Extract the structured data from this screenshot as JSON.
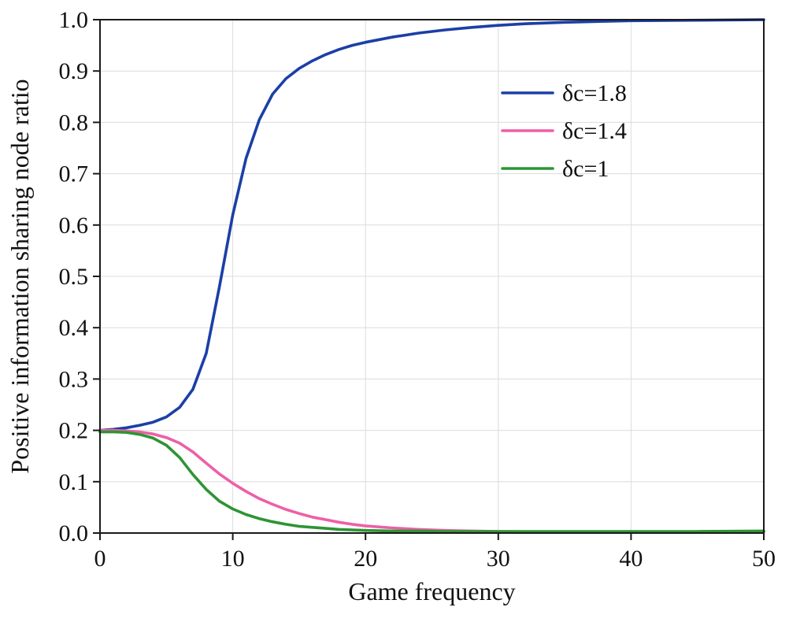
{
  "chart_data": {
    "type": "line",
    "title": "",
    "xlabel": "Game frequency",
    "ylabel": "Positive information sharing node ratio",
    "xlim": [
      0,
      50
    ],
    "ylim": [
      0,
      1
    ],
    "grid": true,
    "legend_position": "upper right",
    "axis_color": "#1a1a1a",
    "grid_color": "#dcdcdc",
    "xtick_values": [
      0,
      10,
      20,
      30,
      40,
      50
    ],
    "xtick_labels": [
      "0",
      "10",
      "20",
      "30",
      "40",
      "50"
    ],
    "ytick_values": [
      0,
      0.1,
      0.2,
      0.3,
      0.4,
      0.5,
      0.6,
      0.7,
      0.8,
      0.9,
      1.0
    ],
    "ytick_labels": [
      "0.0",
      "0.1",
      "0.2",
      "0.3",
      "0.4",
      "0.5",
      "0.6",
      "0.7",
      "0.8",
      "0.9",
      "1.0"
    ],
    "series": [
      {
        "name": "δc=1.8",
        "color": "#1b3fa6",
        "x": [
          0,
          1,
          2,
          3,
          4,
          5,
          6,
          7,
          8,
          9,
          10,
          11,
          12,
          13,
          14,
          15,
          16,
          17,
          18,
          19,
          20,
          22,
          24,
          26,
          28,
          30,
          32,
          35,
          40,
          45,
          50
        ],
        "y": [
          0.2,
          0.202,
          0.205,
          0.21,
          0.216,
          0.226,
          0.245,
          0.28,
          0.35,
          0.48,
          0.62,
          0.73,
          0.805,
          0.855,
          0.885,
          0.905,
          0.92,
          0.932,
          0.942,
          0.95,
          0.956,
          0.966,
          0.974,
          0.98,
          0.985,
          0.989,
          0.992,
          0.995,
          0.998,
          0.999,
          1.0
        ]
      },
      {
        "name": "δc=1.4",
        "color": "#ee5fa7",
        "x": [
          0,
          1,
          2,
          3,
          4,
          5,
          6,
          7,
          8,
          9,
          10,
          11,
          12,
          13,
          14,
          15,
          16,
          17,
          18,
          19,
          20,
          22,
          24,
          26,
          28,
          30,
          35,
          40,
          45,
          50
        ],
        "y": [
          0.2,
          0.2,
          0.199,
          0.197,
          0.193,
          0.186,
          0.175,
          0.158,
          0.136,
          0.115,
          0.097,
          0.081,
          0.067,
          0.056,
          0.046,
          0.038,
          0.031,
          0.026,
          0.021,
          0.017,
          0.014,
          0.01,
          0.007,
          0.005,
          0.004,
          0.003,
          0.002,
          0.002,
          0.002,
          0.002
        ]
      },
      {
        "name": "δc=1",
        "color": "#2e9433",
        "x": [
          0,
          1,
          2,
          3,
          4,
          5,
          6,
          7,
          8,
          9,
          10,
          11,
          12,
          13,
          14,
          15,
          16,
          17,
          18,
          19,
          20,
          22,
          24,
          26,
          28,
          30,
          35,
          40,
          45,
          50
        ],
        "y": [
          0.197,
          0.197,
          0.196,
          0.192,
          0.185,
          0.171,
          0.147,
          0.114,
          0.085,
          0.062,
          0.047,
          0.036,
          0.028,
          0.022,
          0.017,
          0.013,
          0.011,
          0.009,
          0.007,
          0.006,
          0.005,
          0.004,
          0.004,
          0.003,
          0.003,
          0.003,
          0.003,
          0.003,
          0.003,
          0.004
        ]
      }
    ]
  }
}
